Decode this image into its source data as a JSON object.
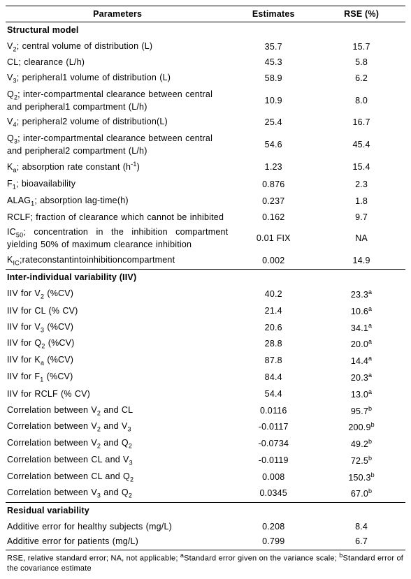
{
  "headers": {
    "param": "Parameters",
    "est": "Estimates",
    "rse": "RSE (%)"
  },
  "sections": {
    "structural": "Structural model",
    "iiv": "Inter-individual variability (IIV)",
    "residual": "Residual variability"
  },
  "structural": [
    {
      "p": "V<sub>2</sub>; central volume of distribution (L)",
      "e": "35.7",
      "r": "15.7"
    },
    {
      "p": "CL; clearance (L/h)",
      "e": "45.3",
      "r": "5.8"
    },
    {
      "p": "V<sub>3</sub>; peripheral1 volume of distribution (L)",
      "e": "58.9",
      "r": "6.2"
    },
    {
      "p": "Q<sub>2</sub>; inter-compartmental clearance between central and peripheral1 compartment (L/h)",
      "e": "10.9",
      "r": "8.0"
    },
    {
      "p": "V<sub>4</sub>; peripheral2 volume of distribution(L)",
      "e": "25.4",
      "r": "16.7"
    },
    {
      "p": "Q<sub>3</sub>; inter-compartmental clearance between central and peripheral2 compartment (L/h)",
      "e": "54.6",
      "r": "45.4"
    },
    {
      "p": "K<sub>a</sub>; absorption rate constant (h<sup>-1</sup>)",
      "e": "1.23",
      "r": "15.4"
    },
    {
      "p": "F<sub>1</sub>; bioavailability",
      "e": "0.876",
      "r": "2.3"
    },
    {
      "p": "ALAG<sub>1</sub>; absorption lag-time(h)",
      "e": "0.237",
      "r": "1.8"
    },
    {
      "p": "RCLF; fraction of clearance which cannot be inhibited",
      "e": "0.162",
      "r": "9.7",
      "justify": true
    },
    {
      "p": "IC<sub>50</sub>; concentration in the inhibition compartment yielding 50% of maximum clearance inhibition",
      "e": "0.01 FIX",
      "r": "NA",
      "justify": true
    },
    {
      "p": "K<sub>IC</sub>;rateconstantintoinhibitioncompartment",
      "e": "0.002",
      "r": "14.9"
    }
  ],
  "iiv": [
    {
      "p": "IIV for V<sub>2</sub> (%CV)",
      "e": "40.2",
      "r": "23.3<span class=\"ss\">a</span>"
    },
    {
      "p": "IIV for CL (% CV)",
      "e": "21.4",
      "r": "10.6<span class=\"ss\">a</span>"
    },
    {
      "p": "IIV for V<sub>3</sub> (%CV)",
      "e": "20.6",
      "r": "34.1<span class=\"ss\">a</span>"
    },
    {
      "p": "IIV for Q<sub>2</sub> (%CV)",
      "e": "28.8",
      "r": "20.0<span class=\"ss\">a</span>"
    },
    {
      "p": "IIV for K<sub>a</sub> (%CV)",
      "e": "87.8",
      "r": "14.4<span class=\"ss\">a</span>"
    },
    {
      "p": "IIV for F<sub>1</sub> (%CV)",
      "e": "84.4",
      "r": "20.3<span class=\"ss\">a</span>"
    },
    {
      "p": "IIV for RCLF (% CV)",
      "e": "54.4",
      "r": "13.0<span class=\"ss\">a</span>"
    },
    {
      "p": "Correlation between V<sub>2</sub> and CL",
      "e": "0.0116",
      "r": "95.7<span class=\"ss\">b</span>"
    },
    {
      "p": "Correlation between V<sub>2</sub> and V<sub>3</sub>",
      "e": "-0.0117",
      "r": "200.9<span class=\"ss\">b</span>"
    },
    {
      "p": "Correlation between V<sub>2</sub> and Q<sub>2</sub>",
      "e": "-0.0734",
      "r": "49.2<span class=\"ss\">b</span>"
    },
    {
      "p": "Correlation between CL and V<sub>3</sub>",
      "e": "-0.0119",
      "r": "72.5<span class=\"ss\">b</span>"
    },
    {
      "p": "Correlation between CL and Q<sub>2</sub>",
      "e": "0.008",
      "r": "150.3<span class=\"ss\">b</span>"
    },
    {
      "p": "Correlation between V<sub>3</sub> and Q<sub>2</sub>",
      "e": "0.0345",
      "r": "67.0<span class=\"ss\">b</span>"
    }
  ],
  "residual": [
    {
      "p": "Additive error for healthy subjects (mg/L)",
      "e": "0.208",
      "r": "8.4"
    },
    {
      "p": "Additive error for patients (mg/L)",
      "e": "0.799",
      "r": "6.7"
    }
  ],
  "footnote": "RSE, relative standard error; NA, not applicable; <span class=\"ss\">a</span>Standard error given on the variance scale; <span class=\"ss\">b</span>Standard error of the covariance estimate"
}
